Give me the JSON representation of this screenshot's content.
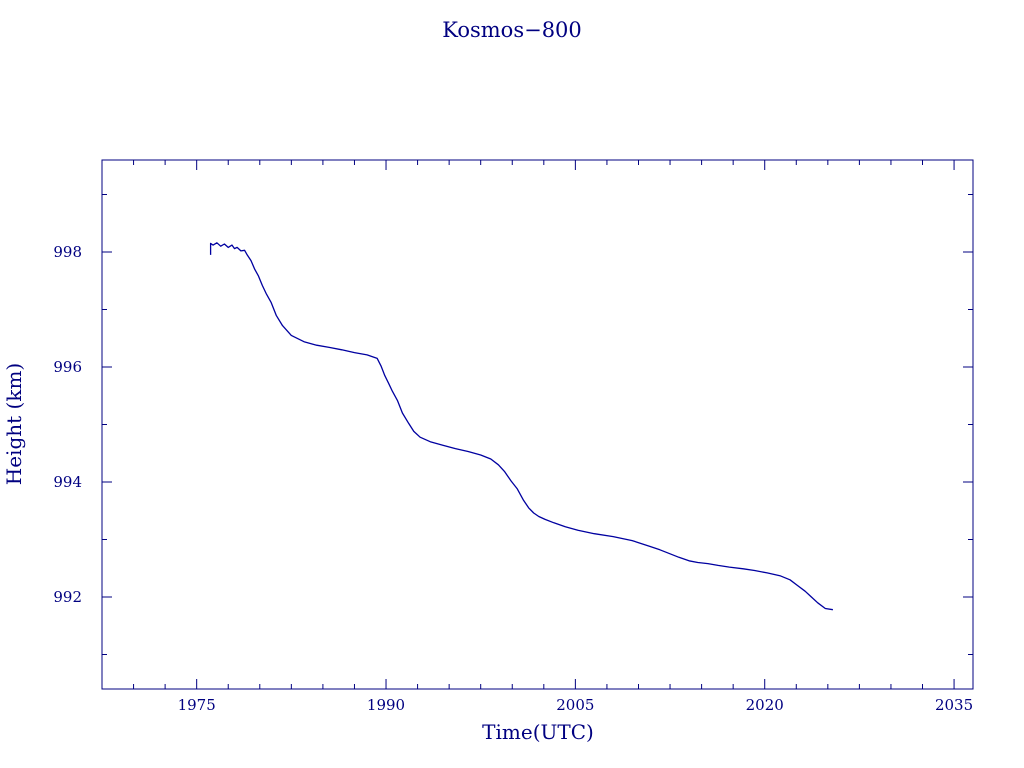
{
  "chart_data": {
    "type": "line",
    "title": "Kosmos−800",
    "xlabel": "Time(UTC)",
    "ylabel": "Height (km)",
    "xlim": [
      1967.5,
      2036.5
    ],
    "ylim": [
      990.4,
      999.6
    ],
    "x_ticks": [
      1975,
      1990,
      2005,
      2020,
      2035
    ],
    "x_tick_labels": [
      "1975",
      "1990",
      "2005",
      "2020",
      "2035"
    ],
    "x_minor_step": 2.5,
    "y_ticks": [
      992,
      994,
      996,
      998
    ],
    "y_tick_labels": [
      "992",
      "994",
      "996",
      "998"
    ],
    "y_minor_step": 1,
    "grid": false,
    "colors": {
      "axis": "#000080",
      "line": "#0000a0",
      "text": "#000080"
    },
    "series": [
      {
        "x": [
          1976.1,
          1976.1,
          1976.3,
          1976.6,
          1976.9,
          1977.2,
          1977.5,
          1977.8,
          1978.0,
          1978.2,
          1978.5,
          1978.8,
          1979.0,
          1979.3,
          1979.6,
          1979.9,
          1980.2,
          1980.5,
          1980.9,
          1981.3,
          1981.8,
          1982.5,
          1983.5,
          1984.5,
          1985.5,
          1986.5,
          1987.5,
          1988.5,
          1989.3,
          1989.6,
          1989.9,
          1990.2,
          1990.5,
          1990.9,
          1991.3,
          1991.8,
          1992.2,
          1992.7,
          1993.5,
          1994.5,
          1995.5,
          1996.5,
          1997.5,
          1998.3,
          1998.9,
          1999.4,
          1999.9,
          2000.4,
          2000.9,
          2001.3,
          2001.7,
          2002.1,
          2002.6,
          2003.3,
          2004.2,
          2005.2,
          2006.5,
          2008.0,
          2009.5,
          2010.9,
          2011.7,
          2012.4,
          2013.2,
          2014.0,
          2014.7,
          2015.5,
          2016.3,
          2017.2,
          2018.3,
          2019.2,
          2020.2,
          2021.2,
          2022.0,
          2022.6,
          2023.2,
          2023.7,
          2024.2,
          2024.8,
          2025.4
        ],
        "y": [
          997.95,
          998.15,
          998.12,
          998.16,
          998.1,
          998.14,
          998.08,
          998.12,
          998.06,
          998.08,
          998.02,
          998.03,
          997.95,
          997.85,
          997.7,
          997.58,
          997.42,
          997.28,
          997.12,
          996.9,
          996.72,
          996.55,
          996.44,
          996.38,
          996.34,
          996.3,
          996.25,
          996.21,
          996.15,
          996.02,
          995.85,
          995.72,
          995.58,
          995.42,
          995.2,
          995.02,
          994.88,
          994.78,
          994.7,
          994.64,
          994.58,
          994.53,
          994.47,
          994.4,
          994.3,
          994.18,
          994.02,
          993.88,
          993.68,
          993.55,
          993.46,
          993.4,
          993.35,
          993.29,
          993.22,
          993.16,
          993.1,
          993.05,
          992.98,
          992.88,
          992.82,
          992.76,
          992.69,
          992.63,
          992.6,
          992.58,
          992.55,
          992.52,
          992.49,
          992.46,
          992.42,
          992.37,
          992.3,
          992.2,
          992.1,
          992.0,
          991.9,
          991.8,
          991.78
        ]
      }
    ]
  }
}
